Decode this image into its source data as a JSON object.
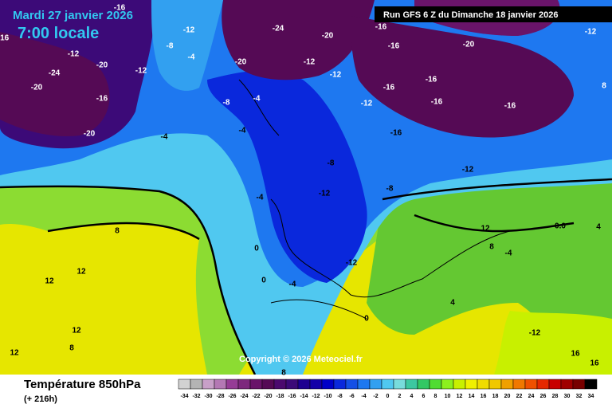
{
  "header": {
    "date": "Mardi 27 janvier 2026",
    "time": "7:00 locale",
    "run": "Run GFS 6 Z du Dimanche 18 janvier 2026"
  },
  "copyright": "Copyright © 2026 Meteociel.fr",
  "footer": {
    "title": "Température 850hPa",
    "lead": "(+ 216h)"
  },
  "legend": {
    "ticks": [
      -34,
      -32,
      -30,
      -28,
      -26,
      -24,
      -22,
      -20,
      -18,
      -16,
      -14,
      -12,
      -10,
      -8,
      -6,
      -4,
      -2,
      0,
      2,
      4,
      6,
      8,
      10,
      12,
      14,
      16,
      18,
      20,
      22,
      24,
      26,
      28,
      30,
      32,
      34
    ],
    "colors": [
      "#d2d2d2",
      "#b4b4b4",
      "#c8a0c8",
      "#b478b4",
      "#963c96",
      "#7d287d",
      "#691469",
      "#550a55",
      "#4b0a6e",
      "#3c0a78",
      "#1e0090",
      "#1400a8",
      "#0000c8",
      "#0a28dc",
      "#1450e6",
      "#1e78f0",
      "#32a0f0",
      "#50c8f0",
      "#78dcdc",
      "#3cc8a0",
      "#32c864",
      "#50dc32",
      "#8cf01e",
      "#c8f000",
      "#f0f000",
      "#f0dc00",
      "#f0c800",
      "#f0a000",
      "#f07800",
      "#f05000",
      "#e62800",
      "#c80000",
      "#a00000",
      "#780000",
      "#000000"
    ]
  },
  "map_labels": [
    "-16",
    "-12",
    "-8",
    "-24",
    "-20",
    "-16",
    "-16",
    "-20",
    "-12",
    "-16",
    "-12",
    "-20",
    "-12",
    "-24",
    "-20",
    "-16",
    "-4",
    "-20",
    "-12",
    "-12",
    "-16",
    "-16",
    "-16",
    "-12",
    "-16",
    "-8",
    "-4",
    "-16",
    "-4",
    "-4",
    "-8",
    "-12",
    "-8",
    "-12",
    "-20",
    "-4",
    "8",
    "0",
    "12",
    "12",
    "-12",
    "-4",
    "0",
    "4",
    "8",
    "12",
    "0.0",
    "0",
    "12",
    "8",
    "12",
    "16",
    "16",
    "-12",
    "8",
    "4",
    "-4",
    "8"
  ]
}
